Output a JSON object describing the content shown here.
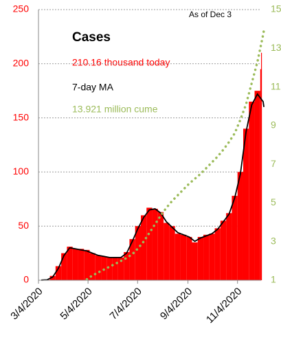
{
  "chart_data": {
    "type": "bar",
    "title": "Cases",
    "annotations": [
      "As of Dec 3",
      "210.16 thousand today",
      "13.921 million cume"
    ],
    "x": [
      "3/4/2020",
      "3/11/2020",
      "3/18/2020",
      "3/25/2020",
      "4/1/2020",
      "4/8/2020",
      "4/15/2020",
      "4/22/2020",
      "4/29/2020",
      "5/6/2020",
      "5/13/2020",
      "5/20/2020",
      "5/27/2020",
      "6/3/2020",
      "6/10/2020",
      "6/17/2020",
      "6/24/2020",
      "7/1/2020",
      "7/8/2020",
      "7/15/2020",
      "7/22/2020",
      "7/29/2020",
      "8/5/2020",
      "8/12/2020",
      "8/19/2020",
      "8/26/2020",
      "9/2/2020",
      "9/9/2020",
      "9/16/2020",
      "9/23/2020",
      "9/30/2020",
      "10/7/2020",
      "10/14/2020",
      "10/21/2020",
      "10/28/2020",
      "11/4/2020",
      "11/11/2020",
      "11/18/2020",
      "11/25/2020",
      "12/2/2020",
      "12/3/2020"
    ],
    "series": [
      {
        "color": "#ff0000",
        "values": [
          0.1,
          0.5,
          4,
          13,
          25,
          31,
          29,
          29,
          28,
          25,
          23,
          22,
          21,
          21,
          21,
          26,
          38,
          50,
          60,
          67,
          66,
          63,
          53,
          50,
          43,
          42,
          40,
          35,
          40,
          42,
          43,
          48,
          55,
          62,
          78,
          100,
          140,
          165,
          175,
          195,
          210.16
        ]
      },
      {
        "name": "7-day MA",
        "color": "#000000",
        "values": [
          0.1,
          0.4,
          3,
          11,
          23,
          30,
          29,
          28,
          27,
          25,
          23,
          22,
          21,
          21,
          21,
          25,
          36,
          48,
          58,
          65,
          66,
          62,
          54,
          49,
          44,
          42,
          40,
          36,
          39,
          41,
          43,
          47,
          54,
          61,
          76,
          98,
          137,
          162,
          172,
          165,
          160
        ]
      },
      {
        "color": "#9bbb59",
        "axis": "y2",
        "values": [
          null,
          null,
          null,
          null,
          null,
          null,
          null,
          null,
          1.05,
          1.25,
          1.4,
          1.55,
          1.7,
          1.85,
          2.0,
          2.15,
          2.35,
          2.65,
          3.0,
          3.45,
          3.9,
          4.35,
          4.75,
          5.1,
          5.4,
          5.7,
          6.0,
          6.25,
          6.5,
          6.8,
          7.1,
          7.4,
          7.75,
          8.15,
          8.6,
          9.3,
          10.1,
          11.2,
          12.3,
          13.7,
          13.921
        ]
      }
    ],
    "xlim": [
      "3/4/2020",
      "12/3/2020"
    ],
    "xticks": [
      "3/4/2020",
      "5/4/2020",
      "7/4/2020",
      "9/4/2020",
      "11/4/2020"
    ],
    "ylim": [
      0,
      250
    ],
    "yticks": [
      0,
      50,
      100,
      150,
      200,
      250
    ],
    "y2lim": [
      1,
      15
    ],
    "y2ticks": [
      1,
      3,
      5,
      7,
      9,
      11,
      13,
      15
    ],
    "grid": true
  }
}
